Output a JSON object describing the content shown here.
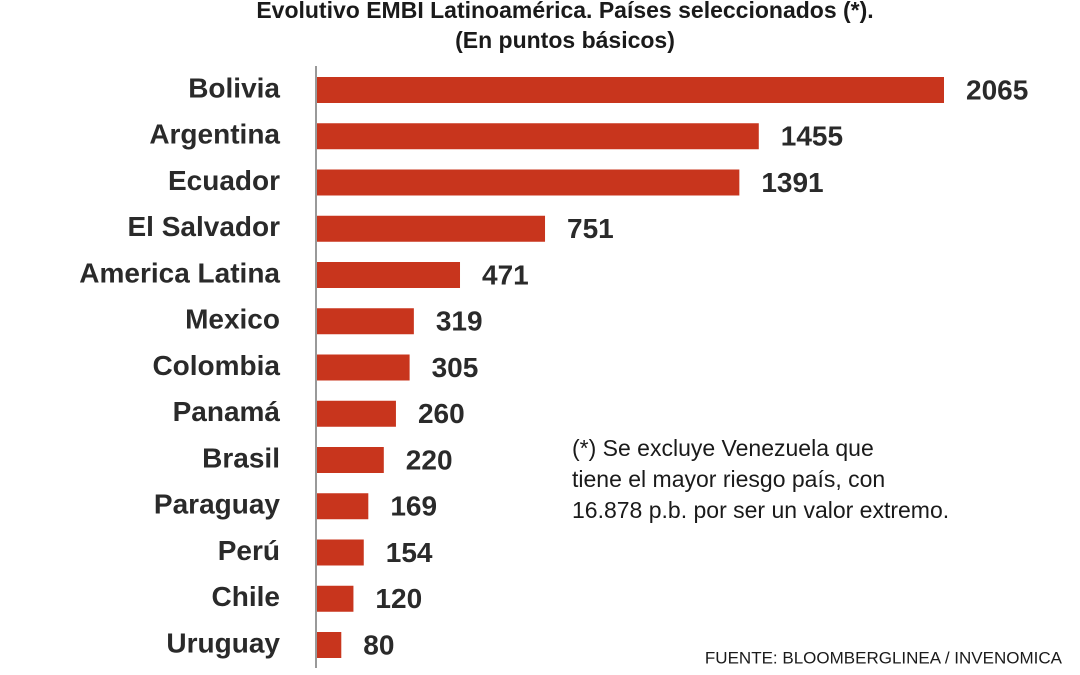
{
  "chart_data": {
    "type": "bar",
    "orientation": "horizontal",
    "title": "Evolutivo EMBI Latinoamérica. Países seleccionados (*).",
    "subtitle": "(En puntos básicos)",
    "categories": [
      "Bolivia",
      "Argentina",
      "Ecuador",
      "El Salvador",
      "America Latina",
      "Mexico",
      "Colombia",
      "Panamá",
      "Brasil",
      "Paraguay",
      "Perú",
      "Chile",
      "Uruguay"
    ],
    "values": [
      2065,
      1455,
      1391,
      751,
      471,
      319,
      305,
      260,
      220,
      169,
      154,
      120,
      80
    ],
    "color": "#c8351d",
    "note": [
      "(*) Se excluye Venezuela que",
      "tiene el mayor riesgo país, con",
      "16.878 p.b. por ser un valor extremo."
    ],
    "source": "FUENTE: BLOOMBERGLINEA / INVENOMICA"
  }
}
